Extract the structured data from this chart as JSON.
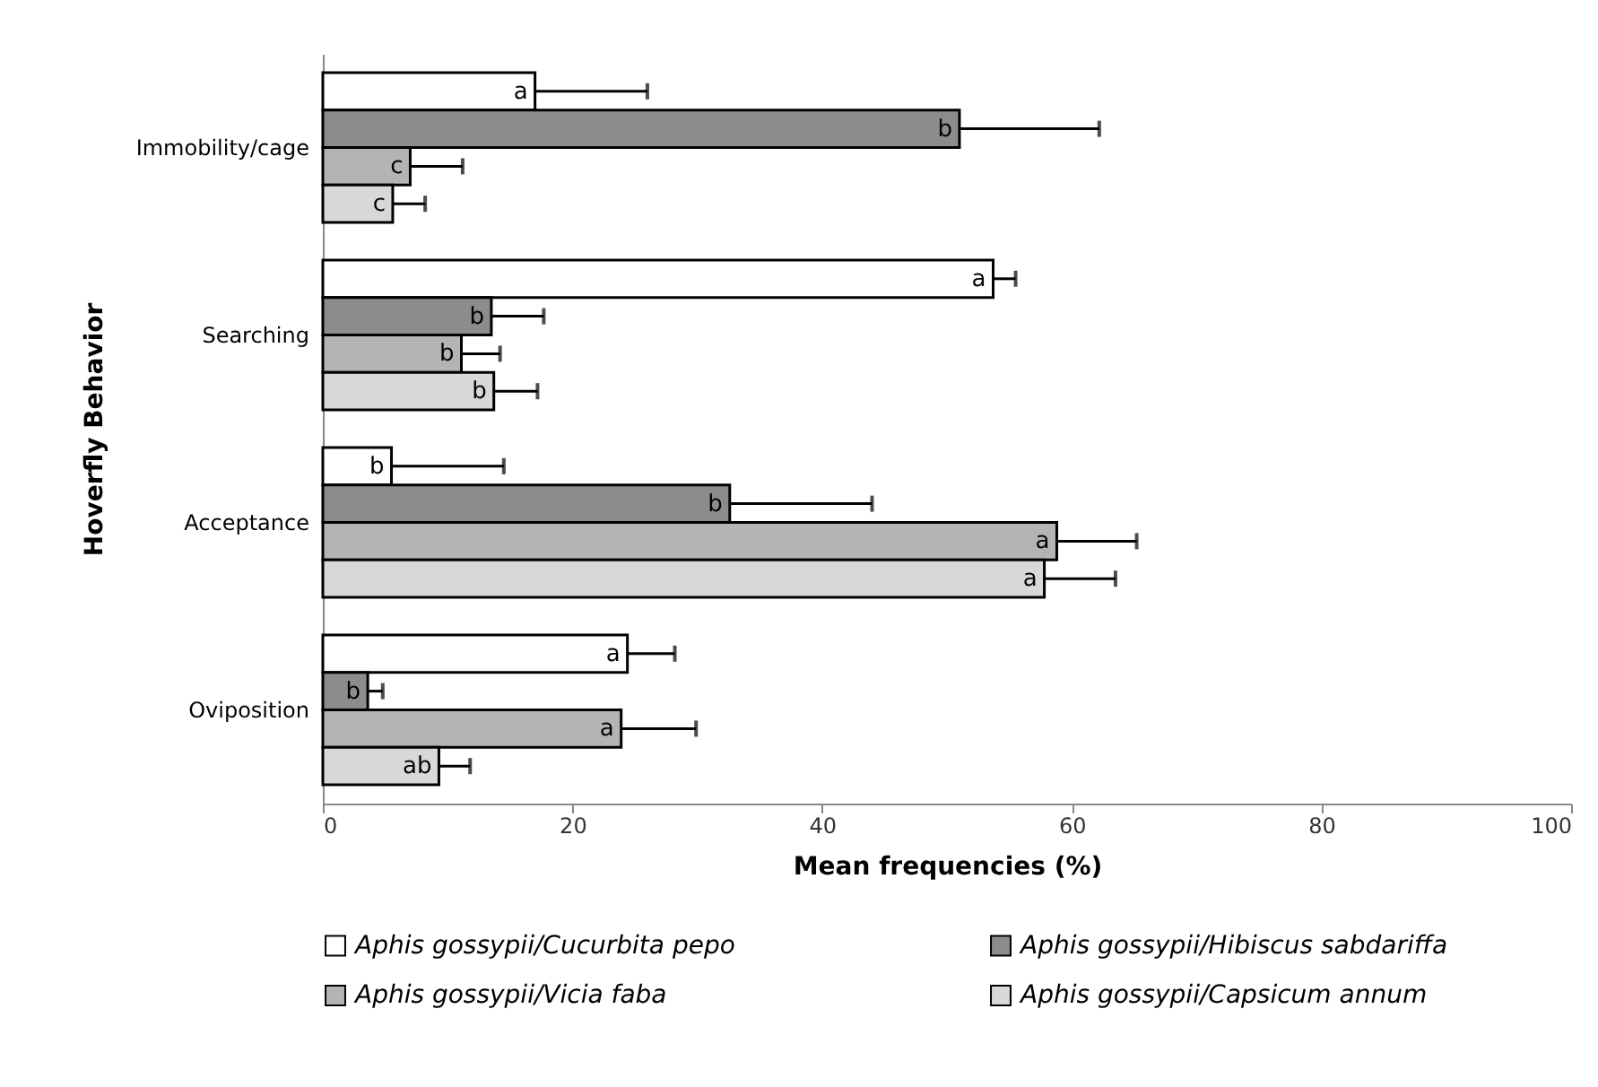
{
  "chart_data": {
    "type": "bar",
    "orientation": "horizontal",
    "xlabel": "Mean frequencies (%)",
    "ylabel": "Hoverfly Behavior",
    "categories": [
      "Immobility/cage",
      "Searching",
      "Acceptance",
      "Oviposition"
    ],
    "series": [
      {
        "name": "Aphis gossypii/Cucurbita pepo",
        "color": "#ffffff",
        "values": [
          17.0,
          53.7,
          5.5,
          24.4
        ],
        "errors": [
          [
            17.0,
            26.0
          ],
          [
            53.7,
            55.5
          ],
          [
            5.5,
            14.5
          ],
          [
            24.4,
            28.2
          ]
        ],
        "value_labels": [
          "a",
          "a",
          "b",
          "a"
        ]
      },
      {
        "name": "Aphis gossypii/Hibiscus sabdariffa",
        "color": "#8c8c8c",
        "values": [
          51.0,
          13.5,
          32.6,
          3.6
        ],
        "errors": [
          [
            51.0,
            62.2
          ],
          [
            13.5,
            17.7
          ],
          [
            32.6,
            44.0
          ],
          [
            3.6,
            4.8
          ]
        ],
        "value_labels": [
          "b",
          "b",
          "b",
          "b"
        ]
      },
      {
        "name": "Aphis gossypii/Vicia faba",
        "color": "#b4b4b4",
        "values": [
          7.0,
          11.1,
          58.8,
          23.9
        ],
        "errors": [
          [
            7.0,
            11.2
          ],
          [
            11.1,
            14.2
          ],
          [
            58.8,
            65.2
          ],
          [
            23.9,
            29.9
          ]
        ],
        "value_labels": [
          "c",
          "b",
          "a",
          "a"
        ]
      },
      {
        "name": "Aphis gossypii/Capsicum annum",
        "color": "#d8d8d8",
        "values": [
          5.6,
          13.7,
          57.8,
          9.3
        ],
        "errors": [
          [
            5.6,
            8.2
          ],
          [
            13.7,
            17.2
          ],
          [
            57.8,
            63.5
          ],
          [
            9.3,
            11.8
          ]
        ],
        "value_labels": [
          "c",
          "b",
          "a",
          "ab"
        ]
      }
    ],
    "xlim": [
      0,
      100
    ],
    "xticks": [
      0,
      20,
      40,
      60,
      80,
      100
    ],
    "grid": false,
    "legend": "bottom"
  }
}
